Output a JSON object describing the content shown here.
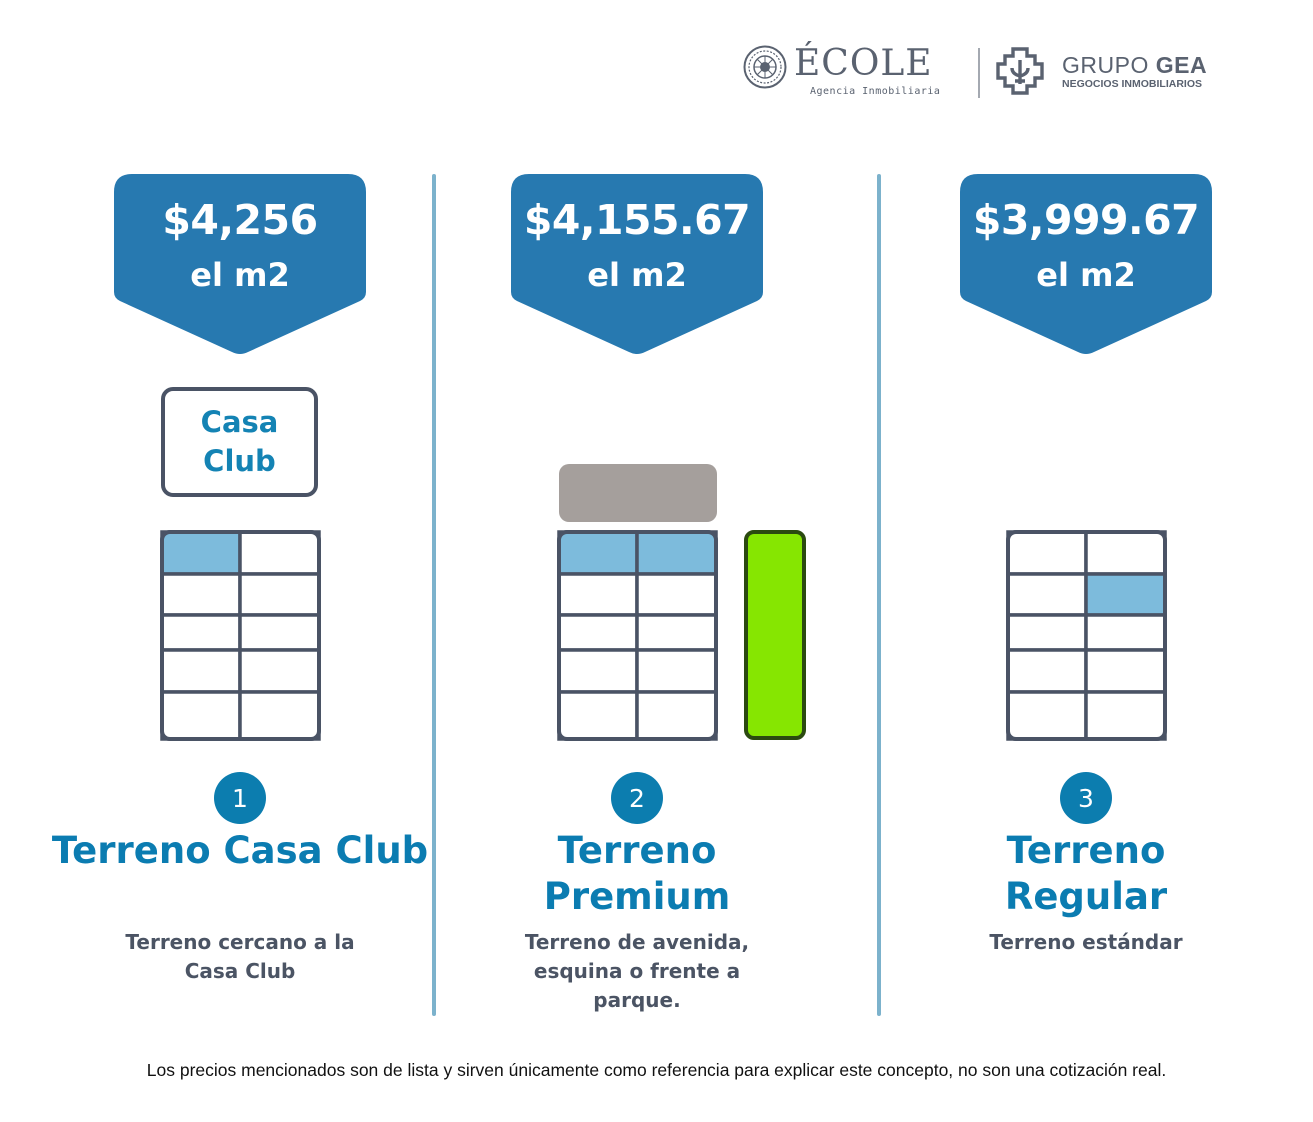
{
  "header": {
    "ecole_name": "ÉCOLE",
    "ecole_subtitle": "Agencia Inmobiliaria",
    "gea_name_light": "GRUPO ",
    "gea_name_bold": "GEA",
    "gea_subtitle": "NEGOCIOS INMOBILIARIOS"
  },
  "colors": {
    "tag_blue": "#2779b0",
    "accent_blue": "#0b7cb1",
    "highlight_cell": "#7dbbdc",
    "road_gray": "#a59f9c",
    "park_green": "#86e601",
    "divider": "#7cb2cc"
  },
  "columns": [
    {
      "price": "$4,256",
      "unit": "el m2",
      "extra_box": "Casa Club",
      "number": "1",
      "title": "Terreno Casa Club",
      "description": "Terreno cercano a la Casa Club",
      "highlighted_cells": [
        [
          0,
          0
        ]
      ]
    },
    {
      "price": "$4,155.67",
      "unit": "el m2",
      "number": "2",
      "title": "Terreno Premium",
      "description": "Terreno de avenida, esquina o frente a parque.",
      "highlighted_cells": [
        [
          0,
          0
        ],
        [
          0,
          1
        ]
      ]
    },
    {
      "price": "$3,999.67",
      "unit": "el m2",
      "number": "3",
      "title": "Terreno Regular",
      "description": "Terreno estándar",
      "highlighted_cells": [
        [
          1,
          1
        ]
      ]
    }
  ],
  "disclaimer": "Los precios mencionados son de lista y sirven únicamente como referencia para explicar este concepto, no son una cotización real."
}
